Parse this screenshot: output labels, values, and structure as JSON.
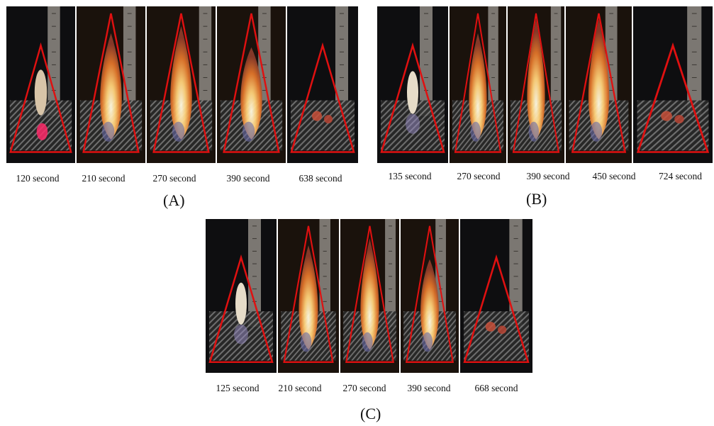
{
  "colors": {
    "triangle": "#e01010",
    "background": "#ffffff"
  },
  "panels": [
    {
      "letter": "(A)",
      "frames": [
        {
          "label": "120 second",
          "flame": 0.0,
          "glow": "pink"
        },
        {
          "label": "210 second",
          "flame": 0.85
        },
        {
          "label": "270 second",
          "flame": 0.9
        },
        {
          "label": "390 second",
          "flame": 0.75
        },
        {
          "label": "638 second",
          "flame": 0.0,
          "glow": "ember"
        }
      ]
    },
    {
      "letter": "(B)",
      "frames": [
        {
          "label": "135 second",
          "flame": 0.0,
          "glow": "white"
        },
        {
          "label": "270 second",
          "flame": 0.85
        },
        {
          "label": "390 second",
          "flame": 0.95
        },
        {
          "label": "450 second",
          "flame": 0.95
        },
        {
          "label": "724 second",
          "flame": 0.0,
          "glow": "ember"
        }
      ]
    },
    {
      "letter": "(C)",
      "frames": [
        {
          "label": "125 second",
          "flame": 0.0,
          "glow": "white"
        },
        {
          "label": "210 second",
          "flame": 0.85
        },
        {
          "label": "270 second",
          "flame": 0.9
        },
        {
          "label": "390 second",
          "flame": 0.75
        },
        {
          "label": "668 second",
          "flame": 0.0,
          "glow": "ember"
        }
      ]
    }
  ]
}
